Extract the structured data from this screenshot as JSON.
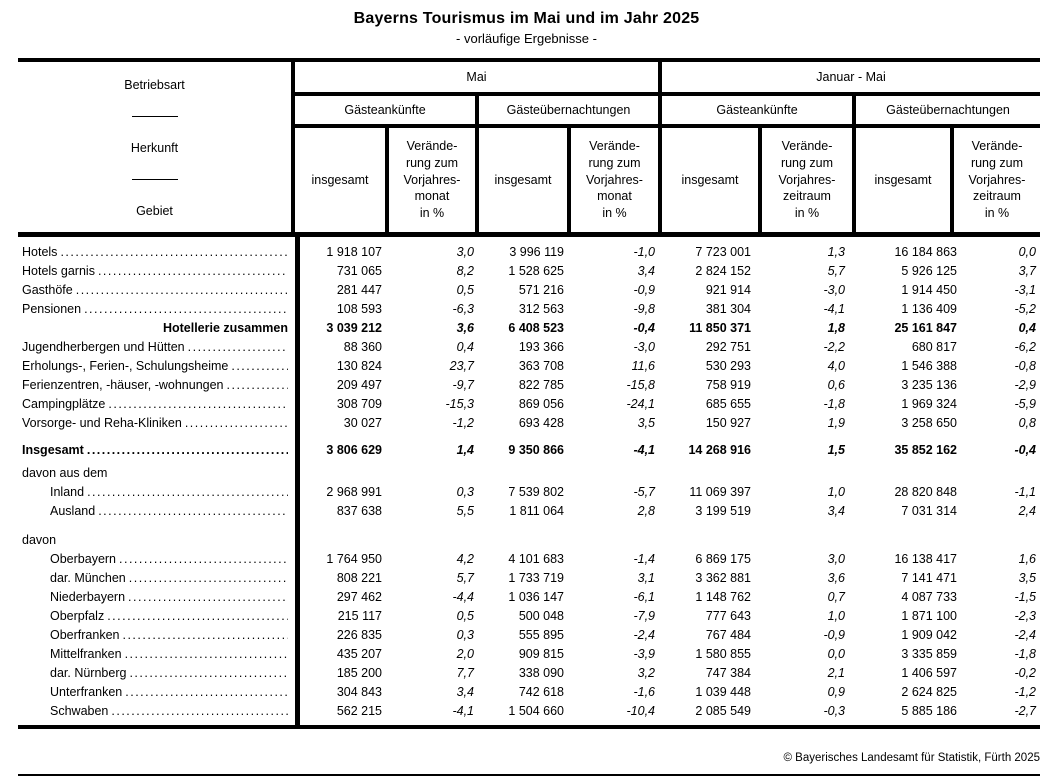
{
  "title": "Bayerns Tourismus im Mai und im Jahr 2025",
  "subtitle": "- vorläufige Ergebnisse -",
  "header": {
    "betriebsart": "Betriebsart",
    "herkunft": "Herkunft",
    "gebiet": "Gebiet",
    "mai": "Mai",
    "januar_mai": "Januar - Mai",
    "ankuenfte": "Gästeankünfte",
    "uebernachtungen": "Gästeübernachtungen",
    "insgesamt": "insgesamt",
    "change_month": "Verände-\nrung zum\nVorjahres-\nmonat\nin %",
    "change_period": "Verände-\nrung zum\nVorjahres-\nzeitraum\nin %"
  },
  "table": {
    "rows": [
      {
        "label": "Hotels",
        "bold": false,
        "indent": 0,
        "leader": true,
        "alignRight": false,
        "gap": 0,
        "values": [
          "1 918 107",
          "3,0",
          "3 996 119",
          "-1,0",
          "7 723 001",
          "1,3",
          "16 184 863",
          "0,0"
        ]
      },
      {
        "label": "Hotels garnis",
        "bold": false,
        "indent": 0,
        "leader": true,
        "alignRight": false,
        "gap": 0,
        "values": [
          "731 065",
          "8,2",
          "1 528 625",
          "3,4",
          "2 824 152",
          "5,7",
          "5 926 125",
          "3,7"
        ]
      },
      {
        "label": "Gasthöfe",
        "bold": false,
        "indent": 0,
        "leader": true,
        "alignRight": false,
        "gap": 0,
        "values": [
          "281 447",
          "0,5",
          "571 216",
          "-0,9",
          "921 914",
          "-3,0",
          "1 914 450",
          "-3,1"
        ]
      },
      {
        "label": "Pensionen",
        "bold": false,
        "indent": 0,
        "leader": true,
        "alignRight": false,
        "gap": 0,
        "values": [
          "108 593",
          "-6,3",
          "312 563",
          "-9,8",
          "381 304",
          "-4,1",
          "1 136 409",
          "-5,2"
        ]
      },
      {
        "label": "Hotellerie zusammen",
        "bold": true,
        "indent": 0,
        "leader": false,
        "alignRight": true,
        "gap": 0,
        "values": [
          "3 039 212",
          "3,6",
          "6 408 523",
          "-0,4",
          "11 850 371",
          "1,8",
          "25 161 847",
          "0,4"
        ]
      },
      {
        "label": "Jugendherbergen und Hütten",
        "bold": false,
        "indent": 0,
        "leader": true,
        "alignRight": false,
        "gap": 0,
        "values": [
          "88 360",
          "0,4",
          "193 366",
          "-3,0",
          "292 751",
          "-2,2",
          "680 817",
          "-6,2"
        ]
      },
      {
        "label": "Erholungs-, Ferien-, Schulungsheime",
        "bold": false,
        "indent": 0,
        "leader": true,
        "alignRight": false,
        "gap": 0,
        "values": [
          "130 824",
          "23,7",
          "363 708",
          "11,6",
          "530 293",
          "4,0",
          "1 546 388",
          "-0,8"
        ]
      },
      {
        "label": "Ferienzentren, -häuser, -wohnungen",
        "bold": false,
        "indent": 0,
        "leader": true,
        "alignRight": false,
        "gap": 0,
        "values": [
          "209 497",
          "-9,7",
          "822 785",
          "-15,8",
          "758 919",
          "0,6",
          "3 235 136",
          "-2,9"
        ]
      },
      {
        "label": "Campingplätze",
        "bold": false,
        "indent": 0,
        "leader": true,
        "alignRight": false,
        "gap": 0,
        "values": [
          "308 709",
          "-15,3",
          "869 056",
          "-24,1",
          "685 655",
          "-1,8",
          "1 969 324",
          "-5,9"
        ]
      },
      {
        "label": "Vorsorge- und Reha-Kliniken",
        "bold": false,
        "indent": 0,
        "leader": true,
        "alignRight": false,
        "gap": 0,
        "values": [
          "30 027",
          "-1,2",
          "693 428",
          "3,5",
          "150 927",
          "1,9",
          "3 258 650",
          "0,8"
        ]
      },
      {
        "label": "Insgesamt",
        "bold": true,
        "indent": 0,
        "leader": true,
        "alignRight": false,
        "gap": 8,
        "values": [
          "3 806 629",
          "1,4",
          "9 350 866",
          "-4,1",
          "14 268 916",
          "1,5",
          "35 852 162",
          "-0,4"
        ]
      },
      {
        "label": "davon aus dem",
        "bold": false,
        "indent": 0,
        "leader": false,
        "alignRight": false,
        "gap": 4,
        "values": []
      },
      {
        "label": "Inland",
        "bold": false,
        "indent": 1,
        "leader": true,
        "alignRight": false,
        "gap": 0,
        "values": [
          "2 968 991",
          "0,3",
          "7 539 802",
          "-5,7",
          "11 069 397",
          "1,0",
          "28 820 848",
          "-1,1"
        ]
      },
      {
        "label": "Ausland",
        "bold": false,
        "indent": 1,
        "leader": true,
        "alignRight": false,
        "gap": 0,
        "values": [
          "837 638",
          "5,5",
          "1 811 064",
          "2,8",
          "3 199 519",
          "3,4",
          "7 031 314",
          "2,4"
        ]
      },
      {
        "label": "davon",
        "bold": false,
        "indent": 0,
        "leader": false,
        "alignRight": false,
        "gap": 10,
        "values": []
      },
      {
        "label": "Oberbayern",
        "bold": false,
        "indent": 1,
        "leader": true,
        "alignRight": false,
        "gap": 0,
        "values": [
          "1 764 950",
          "4,2",
          "4 101 683",
          "-1,4",
          "6 869 175",
          "3,0",
          "16 138 417",
          "1,6"
        ]
      },
      {
        "label": "dar. München",
        "bold": false,
        "indent": 1,
        "leader": true,
        "alignRight": false,
        "gap": 0,
        "values": [
          "808 221",
          "5,7",
          "1 733 719",
          "3,1",
          "3 362 881",
          "3,6",
          "7 141 471",
          "3,5"
        ]
      },
      {
        "label": "Niederbayern",
        "bold": false,
        "indent": 1,
        "leader": true,
        "alignRight": false,
        "gap": 0,
        "values": [
          "297 462",
          "-4,4",
          "1 036 147",
          "-6,1",
          "1 148 762",
          "0,7",
          "4 087 733",
          "-1,5"
        ]
      },
      {
        "label": "Oberpfalz",
        "bold": false,
        "indent": 1,
        "leader": true,
        "alignRight": false,
        "gap": 0,
        "values": [
          "215 117",
          "0,5",
          "500 048",
          "-7,9",
          "777 643",
          "1,0",
          "1 871 100",
          "-2,3"
        ]
      },
      {
        "label": "Oberfranken",
        "bold": false,
        "indent": 1,
        "leader": true,
        "alignRight": false,
        "gap": 0,
        "values": [
          "226 835",
          "0,3",
          "555 895",
          "-2,4",
          "767 484",
          "-0,9",
          "1 909 042",
          "-2,4"
        ]
      },
      {
        "label": "Mittelfranken",
        "bold": false,
        "indent": 1,
        "leader": true,
        "alignRight": false,
        "gap": 0,
        "values": [
          "435 207",
          "2,0",
          "909 815",
          "-3,9",
          "1 580 855",
          "0,0",
          "3 335 859",
          "-1,8"
        ]
      },
      {
        "label": "dar. Nürnberg",
        "bold": false,
        "indent": 1,
        "leader": true,
        "alignRight": false,
        "gap": 0,
        "values": [
          "185 200",
          "7,7",
          "338 090",
          "3,2",
          "747 384",
          "2,1",
          "1 406 597",
          "-0,2"
        ]
      },
      {
        "label": "Unterfranken",
        "bold": false,
        "indent": 1,
        "leader": true,
        "alignRight": false,
        "gap": 0,
        "values": [
          "304 843",
          "3,4",
          "742 618",
          "-1,6",
          "1 039 448",
          "0,9",
          "2 624 825",
          "-1,2"
        ]
      },
      {
        "label": "Schwaben",
        "bold": false,
        "indent": 1,
        "leader": true,
        "alignRight": false,
        "gap": 0,
        "values": [
          "562 215",
          "-4,1",
          "1 504 660",
          "-10,4",
          "2 085 549",
          "-0,3",
          "5 885 186",
          "-2,7"
        ]
      }
    ]
  },
  "footer": {
    "copyright": "© Bayerisches Landesamt für Statistik, Fürth 2025"
  }
}
